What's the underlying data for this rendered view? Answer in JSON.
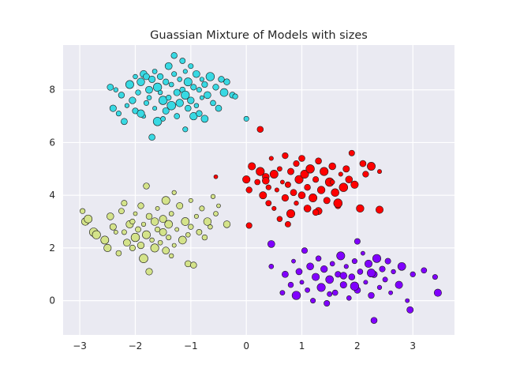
{
  "chart_data": {
    "type": "scatter",
    "title": "Guassian Mixture of Models with sizes",
    "xlabel": "",
    "ylabel": "",
    "xlim": [
      -3.3,
      3.75
    ],
    "ylim": [
      -1.3,
      9.7
    ],
    "x_ticks": [
      -3,
      -2,
      -1,
      0,
      1,
      2,
      3
    ],
    "x_tick_labels": [
      "−3",
      "−2",
      "−1",
      "0",
      "1",
      "2",
      "3"
    ],
    "y_ticks": [
      0,
      2,
      4,
      6,
      8
    ],
    "y_tick_labels": [
      "0",
      "2",
      "4",
      "6",
      "8"
    ],
    "grid": true,
    "style": "seaborn darkgrid",
    "colors": {
      "background": "#EAEAF2",
      "grid": "#FFFFFF",
      "marker_edge": "#1a1a1a",
      "cluster_cyan": "#38D9E3",
      "cluster_olive": "#D4E38A",
      "cluster_red": "#FF0000",
      "cluster_purple": "#8000FF"
    },
    "series": [
      {
        "color": "cluster_cyan",
        "points": [
          [
            -2.45,
            8.1
          ],
          [
            -2.4,
            7.3
          ],
          [
            -2.35,
            8.0
          ],
          [
            -2.3,
            7.1
          ],
          [
            -2.25,
            7.8
          ],
          [
            -2.2,
            6.8
          ],
          [
            -2.15,
            7.4
          ],
          [
            -2.1,
            8.2
          ],
          [
            -2.05,
            7.6
          ],
          [
            -2.0,
            7.2
          ],
          [
            -1.95,
            7.9
          ],
          [
            -1.9,
            8.3
          ],
          [
            -1.85,
            8.6
          ],
          [
            -1.85,
            7.0
          ],
          [
            -1.8,
            8.5
          ],
          [
            -1.8,
            7.5
          ],
          [
            -1.75,
            8.0
          ],
          [
            -1.75,
            7.7
          ],
          [
            -1.7,
            8.4
          ],
          [
            -1.7,
            6.2
          ],
          [
            -1.65,
            8.7
          ],
          [
            -1.65,
            7.3
          ],
          [
            -1.6,
            8.1
          ],
          [
            -1.6,
            6.8
          ],
          [
            -1.55,
            7.9
          ],
          [
            -1.55,
            8.5
          ],
          [
            -1.5,
            7.6
          ],
          [
            -1.5,
            6.9
          ],
          [
            -1.45,
            8.3
          ],
          [
            -1.45,
            7.2
          ],
          [
            -1.4,
            8.9
          ],
          [
            -1.4,
            7.7
          ],
          [
            -1.35,
            8.2
          ],
          [
            -1.35,
            7.4
          ],
          [
            -1.3,
            9.3
          ],
          [
            -1.3,
            8.6
          ],
          [
            -1.25,
            7.9
          ],
          [
            -1.25,
            7.0
          ],
          [
            -1.2,
            8.4
          ],
          [
            -1.2,
            7.5
          ],
          [
            -1.15,
            9.1
          ],
          [
            -1.15,
            8.0
          ],
          [
            -1.1,
            8.7
          ],
          [
            -1.1,
            7.8
          ],
          [
            -1.1,
            6.5
          ],
          [
            -1.05,
            8.3
          ],
          [
            -1.05,
            7.3
          ],
          [
            -1.0,
            8.9
          ],
          [
            -1.0,
            7.6
          ],
          [
            -0.95,
            8.1
          ],
          [
            -0.95,
            7.0
          ],
          [
            -0.9,
            8.6
          ],
          [
            -0.9,
            7.4
          ],
          [
            -0.85,
            8.0
          ],
          [
            -0.85,
            7.1
          ],
          [
            -0.8,
            8.4
          ],
          [
            -0.8,
            7.7
          ],
          [
            -0.75,
            8.2
          ],
          [
            -0.75,
            6.9
          ],
          [
            -0.7,
            7.8
          ],
          [
            -0.65,
            8.5
          ],
          [
            -0.6,
            7.5
          ],
          [
            -0.55,
            8.1
          ],
          [
            -0.5,
            7.3
          ],
          [
            -0.45,
            8.4
          ],
          [
            -0.4,
            7.9
          ],
          [
            -0.35,
            8.3
          ],
          [
            -0.25,
            7.8
          ],
          [
            -0.2,
            7.75
          ],
          [
            0.0,
            6.9
          ],
          [
            -1.9,
            7.1
          ],
          [
            -2.0,
            8.5
          ]
        ]
      },
      {
        "color": "cluster_olive",
        "points": [
          [
            -2.95,
            3.4
          ],
          [
            -2.9,
            3.0
          ],
          [
            -2.85,
            3.1
          ],
          [
            -2.75,
            2.6
          ],
          [
            -2.7,
            2.5
          ],
          [
            -2.55,
            2.3
          ],
          [
            -2.5,
            2.0
          ],
          [
            -2.45,
            3.2
          ],
          [
            -2.4,
            2.8
          ],
          [
            -2.35,
            2.6
          ],
          [
            -2.3,
            1.8
          ],
          [
            -2.25,
            3.4
          ],
          [
            -2.2,
            2.6
          ],
          [
            -2.2,
            3.7
          ],
          [
            -2.15,
            2.2
          ],
          [
            -2.1,
            2.9
          ],
          [
            -2.05,
            3.0
          ],
          [
            -2.0,
            2.4
          ],
          [
            -2.0,
            3.3
          ],
          [
            -1.95,
            2.7
          ],
          [
            -1.9,
            2.1
          ],
          [
            -1.9,
            3.6
          ],
          [
            -1.85,
            2.9
          ],
          [
            -1.85,
            1.6
          ],
          [
            -1.8,
            4.35
          ],
          [
            -1.8,
            2.5
          ],
          [
            -1.75,
            1.1
          ],
          [
            -1.75,
            3.2
          ],
          [
            -1.7,
            2.3
          ],
          [
            -1.65,
            3.0
          ],
          [
            -1.65,
            2.0
          ],
          [
            -1.6,
            2.7
          ],
          [
            -1.6,
            3.5
          ],
          [
            -1.55,
            2.2
          ],
          [
            -1.5,
            3.1
          ],
          [
            -1.5,
            2.6
          ],
          [
            -1.45,
            1.9
          ],
          [
            -1.45,
            3.8
          ],
          [
            -1.4,
            2.4
          ],
          [
            -1.4,
            2.9
          ],
          [
            -1.35,
            3.3
          ],
          [
            -1.3,
            2.1
          ],
          [
            -1.3,
            4.1
          ],
          [
            -1.25,
            2.7
          ],
          [
            -1.2,
            3.6
          ],
          [
            -1.15,
            2.3
          ],
          [
            -1.1,
            3.0
          ],
          [
            -1.05,
            2.5
          ],
          [
            -1.05,
            1.4
          ],
          [
            -1.0,
            3.8
          ],
          [
            -1.0,
            2.8
          ],
          [
            -0.95,
            1.35
          ],
          [
            -0.9,
            3.2
          ],
          [
            -0.85,
            2.6
          ],
          [
            -0.8,
            3.5
          ],
          [
            -0.75,
            2.4
          ],
          [
            -0.7,
            3.0
          ],
          [
            -0.65,
            2.8
          ],
          [
            -0.55,
            3.3
          ],
          [
            -0.5,
            3.6
          ],
          [
            -0.35,
            2.9
          ],
          [
            -0.6,
            3.95
          ],
          [
            -2.05,
            2.0
          ],
          [
            -1.35,
            1.7
          ]
        ]
      },
      {
        "color": "cluster_red",
        "points": [
          [
            0.25,
            6.5
          ],
          [
            0.05,
            2.85
          ],
          [
            -0.55,
            4.7
          ],
          [
            0.0,
            4.6
          ],
          [
            0.05,
            4.2
          ],
          [
            0.1,
            5.1
          ],
          [
            0.2,
            4.5
          ],
          [
            0.25,
            4.9
          ],
          [
            0.3,
            4.0
          ],
          [
            0.35,
            4.7
          ],
          [
            0.4,
            4.3
          ],
          [
            0.4,
            3.7
          ],
          [
            0.45,
            5.4
          ],
          [
            0.5,
            4.8
          ],
          [
            0.5,
            3.5
          ],
          [
            0.55,
            4.2
          ],
          [
            0.6,
            5.0
          ],
          [
            0.6,
            3.1
          ],
          [
            0.65,
            4.5
          ],
          [
            0.7,
            3.9
          ],
          [
            0.7,
            5.5
          ],
          [
            0.75,
            4.4
          ],
          [
            0.8,
            4.9
          ],
          [
            0.8,
            3.3
          ],
          [
            0.85,
            4.1
          ],
          [
            0.9,
            5.2
          ],
          [
            0.9,
            3.7
          ],
          [
            0.95,
            4.6
          ],
          [
            1.0,
            4.0
          ],
          [
            1.0,
            5.4
          ],
          [
            1.05,
            4.8
          ],
          [
            1.1,
            3.5
          ],
          [
            1.1,
            4.3
          ],
          [
            1.15,
            5.0
          ],
          [
            1.2,
            3.9
          ],
          [
            1.25,
            4.6
          ],
          [
            1.3,
            5.3
          ],
          [
            1.3,
            3.4
          ],
          [
            1.35,
            4.2
          ],
          [
            1.4,
            4.9
          ],
          [
            1.45,
            3.8
          ],
          [
            1.5,
            4.5
          ],
          [
            1.55,
            5.1
          ],
          [
            1.6,
            4.1
          ],
          [
            1.65,
            3.6
          ],
          [
            1.7,
            4.8
          ],
          [
            1.75,
            4.3
          ],
          [
            1.8,
            5.0
          ],
          [
            1.85,
            4.6
          ],
          [
            1.9,
            5.6
          ],
          [
            1.95,
            4.4
          ],
          [
            2.05,
            3.5
          ],
          [
            2.1,
            5.2
          ],
          [
            2.15,
            4.8
          ],
          [
            2.25,
            5.1
          ],
          [
            2.4,
            3.45
          ],
          [
            2.4,
            4.9
          ],
          [
            0.75,
            2.9
          ],
          [
            1.25,
            3.35
          ],
          [
            1.65,
            3.7
          ],
          [
            0.35,
            4.55
          ],
          [
            1.55,
            4.5
          ]
        ]
      },
      {
        "color": "cluster_purple",
        "points": [
          [
            0.45,
            2.15
          ],
          [
            0.45,
            1.3
          ],
          [
            0.65,
            0.3
          ],
          [
            0.7,
            1.0
          ],
          [
            0.8,
            0.6
          ],
          [
            0.85,
            1.5
          ],
          [
            0.9,
            0.2
          ],
          [
            0.95,
            1.1
          ],
          [
            1.0,
            0.7
          ],
          [
            1.05,
            1.9
          ],
          [
            1.1,
            0.4
          ],
          [
            1.15,
            1.3
          ],
          [
            1.2,
            0.0
          ],
          [
            1.25,
            0.9
          ],
          [
            1.3,
            1.6
          ],
          [
            1.35,
            0.5
          ],
          [
            1.4,
            1.2
          ],
          [
            1.45,
            -0.1
          ],
          [
            1.5,
            0.8
          ],
          [
            1.55,
            1.4
          ],
          [
            1.6,
            0.3
          ],
          [
            1.65,
            1.0
          ],
          [
            1.7,
            1.7
          ],
          [
            1.75,
            0.6
          ],
          [
            1.8,
            1.3
          ],
          [
            1.85,
            0.1
          ],
          [
            1.9,
            0.9
          ],
          [
            1.95,
            1.5
          ],
          [
            2.0,
            2.25
          ],
          [
            2.0,
            0.4
          ],
          [
            2.05,
            1.1
          ],
          [
            2.1,
            1.8
          ],
          [
            2.15,
            0.7
          ],
          [
            2.2,
            1.4
          ],
          [
            2.25,
            0.2
          ],
          [
            2.3,
            1.0
          ],
          [
            2.35,
            1.6
          ],
          [
            2.4,
            0.5
          ],
          [
            2.45,
            1.2
          ],
          [
            2.5,
            0.8
          ],
          [
            2.55,
            1.5
          ],
          [
            2.6,
            0.3
          ],
          [
            2.65,
            1.1
          ],
          [
            2.75,
            0.6
          ],
          [
            2.8,
            1.3
          ],
          [
            2.9,
            0.0
          ],
          [
            2.95,
            -0.35
          ],
          [
            3.0,
            1.0
          ],
          [
            3.2,
            1.15
          ],
          [
            3.4,
            0.9
          ],
          [
            3.45,
            0.3
          ],
          [
            2.3,
            -0.75
          ],
          [
            1.5,
            0.25
          ],
          [
            1.75,
            0.95
          ],
          [
            2.25,
            1.05
          ],
          [
            1.95,
            0.55
          ]
        ]
      }
    ]
  }
}
